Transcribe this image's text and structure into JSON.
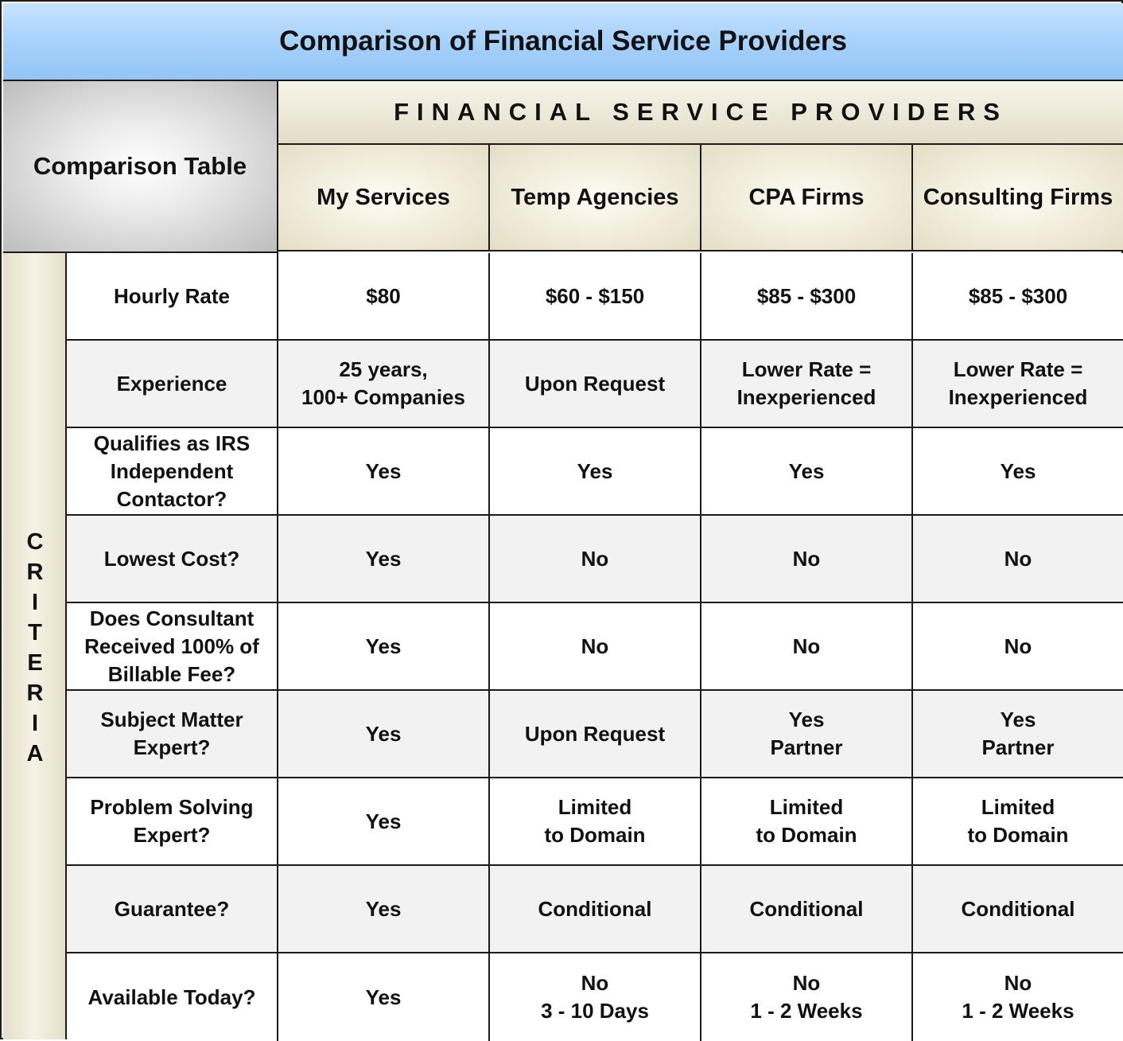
{
  "title": "Comparison of Financial Service Providers",
  "corner_label": "Comparison Table",
  "group_header": "FINANCIAL SERVICE PROVIDERS",
  "columns": [
    "My Services",
    "Temp Agencies",
    "CPA Firms",
    "Consulting Firms"
  ],
  "criteria_label": [
    "C",
    "R",
    "I",
    "T",
    "E",
    "R",
    "I",
    "A"
  ],
  "rows": [
    {
      "label": "Hourly Rate",
      "values": [
        "$80",
        "$60 - $150",
        "$85 - $300",
        "$85 - $300"
      ]
    },
    {
      "label": "Experience",
      "values": [
        "25 years,\n100+ Companies",
        "Upon Request",
        "Lower Rate =\nInexperienced",
        "Lower Rate =\nInexperienced"
      ]
    },
    {
      "label": "Qualifies as IRS\nIndependent\nContactor?",
      "values": [
        "Yes",
        "Yes",
        "Yes",
        "Yes"
      ]
    },
    {
      "label": "Lowest Cost?",
      "values": [
        "Yes",
        "No",
        "No",
        "No"
      ]
    },
    {
      "label": "Does Consultant\nReceived 100% of\nBillable Fee?",
      "values": [
        "Yes",
        "No",
        "No",
        "No"
      ]
    },
    {
      "label": "Subject Matter\nExpert?",
      "values": [
        "Yes",
        "Upon Request",
        "Yes\nPartner",
        "Yes\nPartner"
      ]
    },
    {
      "label": "Problem Solving\nExpert?",
      "values": [
        "Yes",
        "Limited\nto Domain",
        "Limited\nto Domain",
        "Limited\nto Domain"
      ]
    },
    {
      "label": "Guarantee?",
      "values": [
        "Yes",
        "Conditional",
        "Conditional",
        "Conditional"
      ]
    },
    {
      "label": "Available Today?",
      "values": [
        "Yes",
        "No\n3 - 10 Days",
        "No\n1 - 2 Weeks",
        "No\n1 - 2 Weeks"
      ]
    }
  ]
}
